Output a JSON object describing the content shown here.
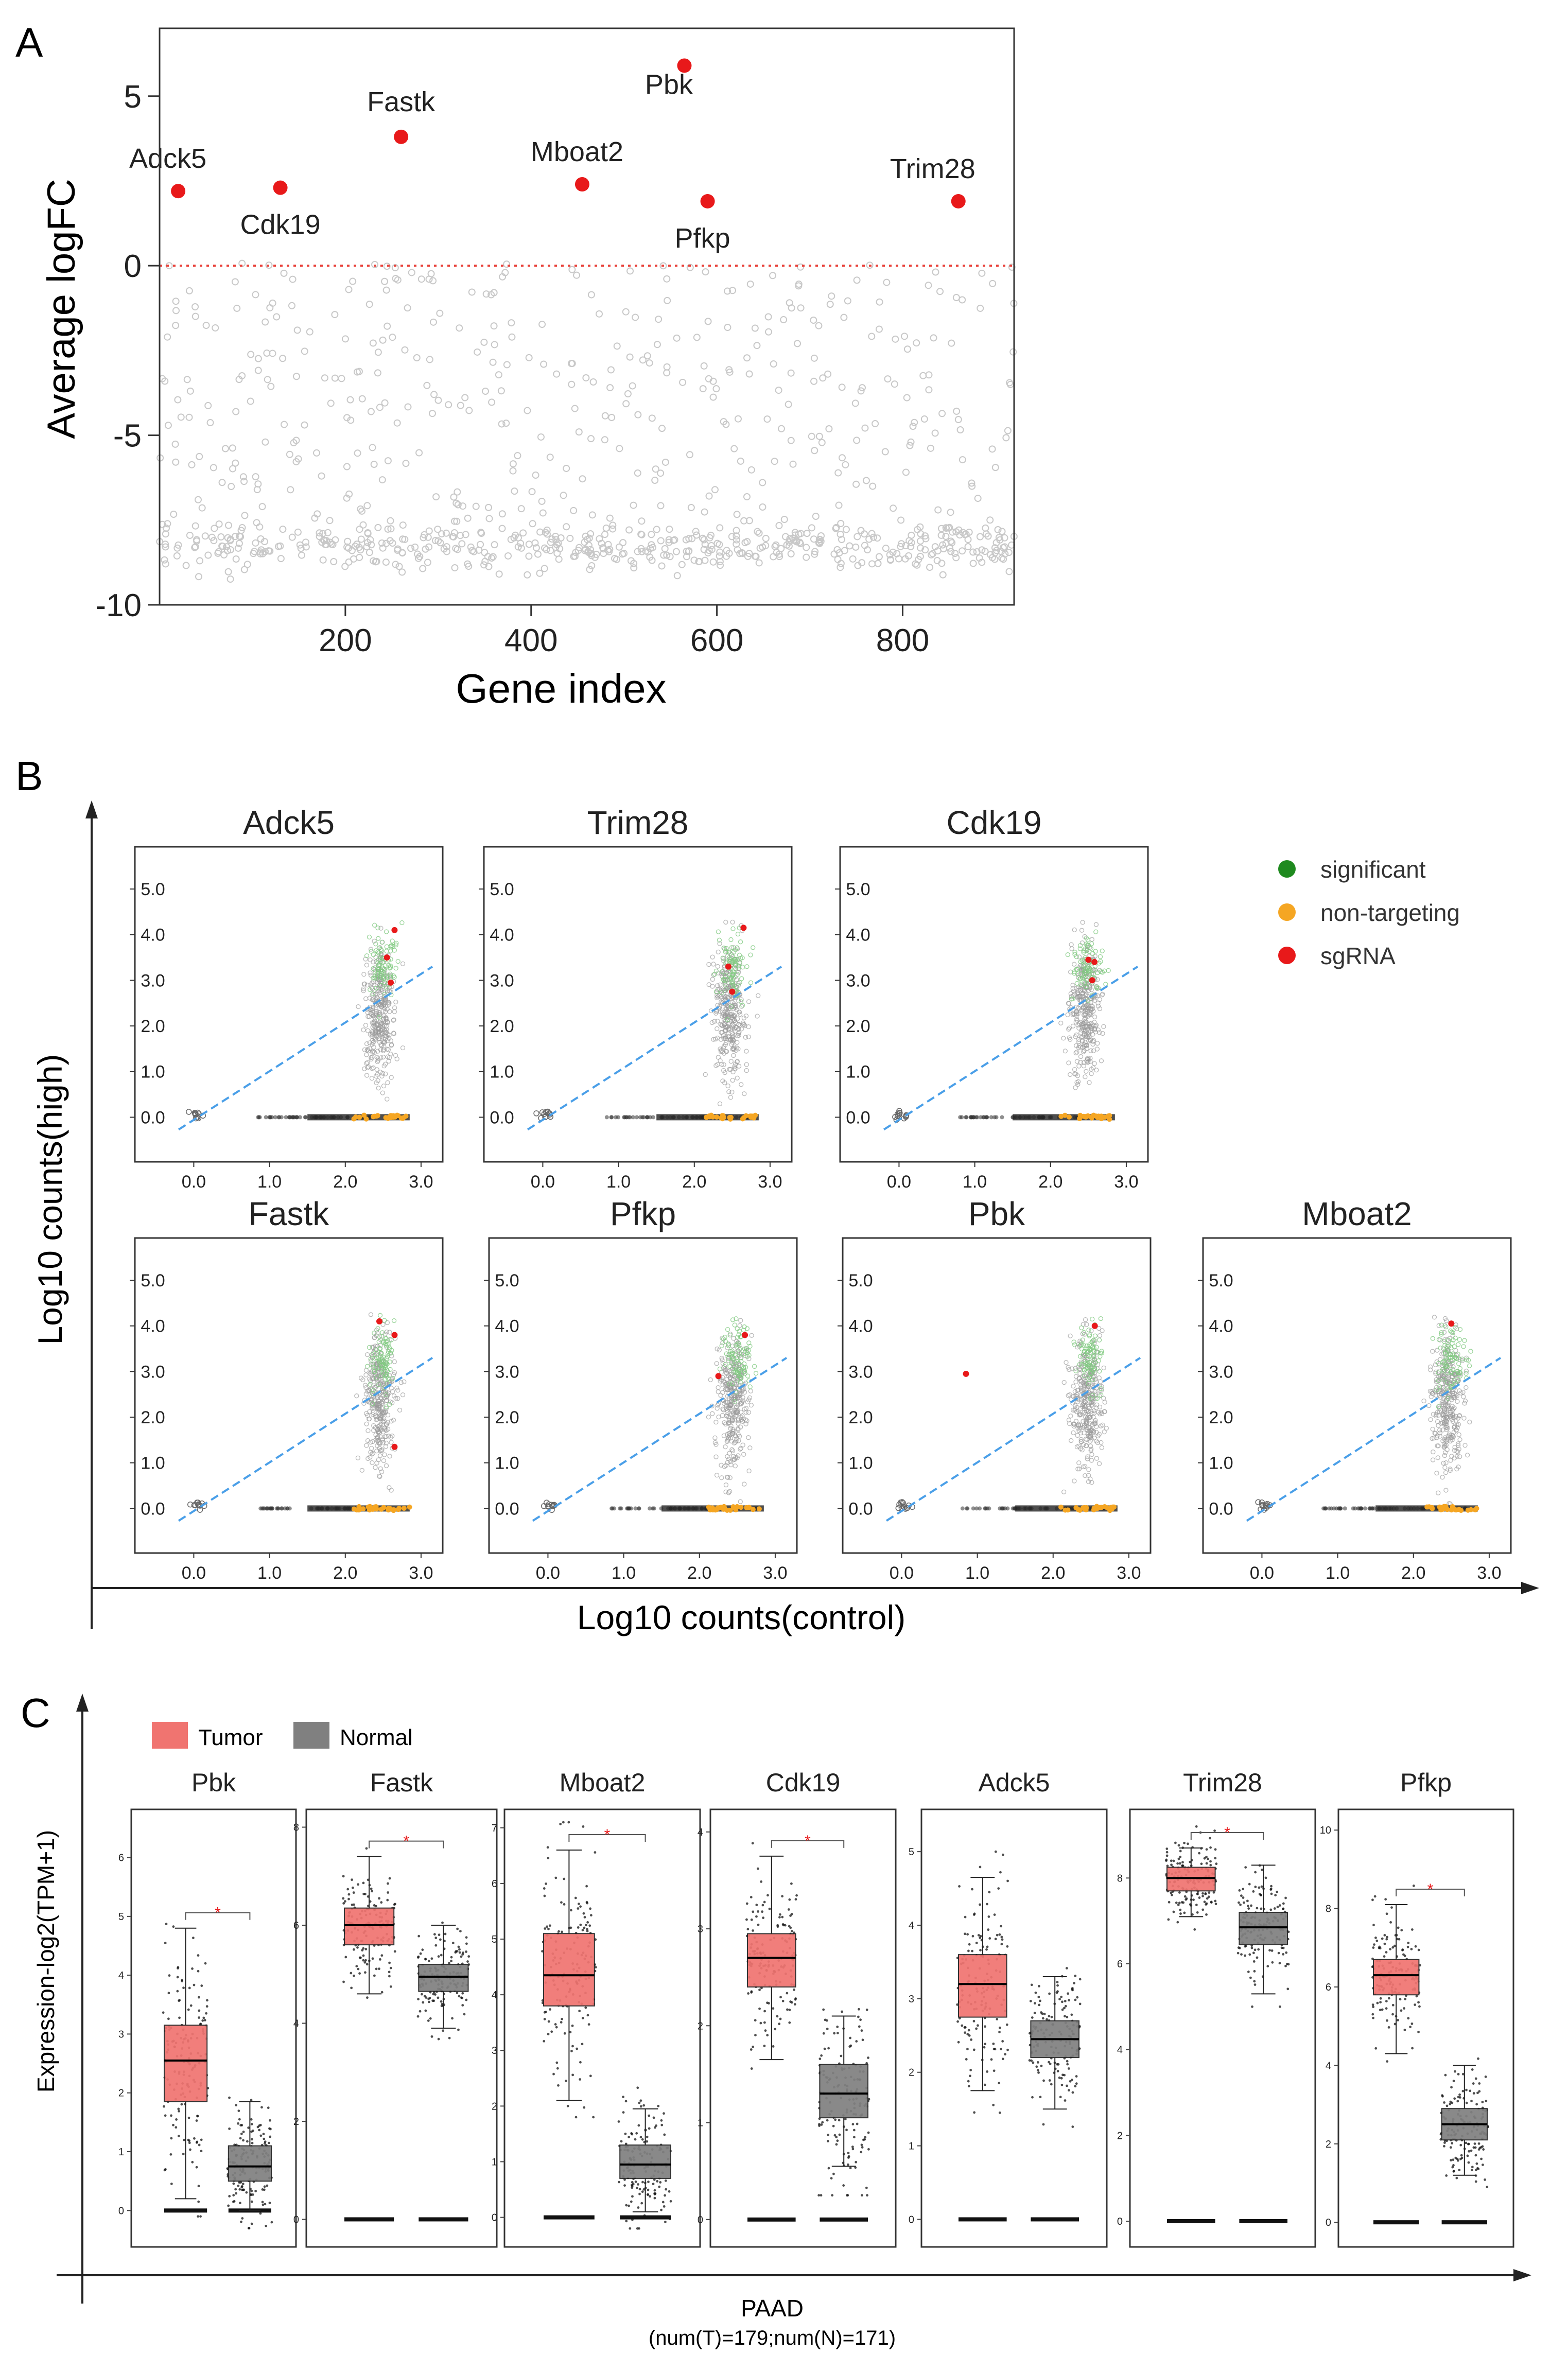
{
  "panel_a": {
    "label": "A",
    "chart_data": {
      "type": "scatter",
      "title": "",
      "xlabel": "Gene index",
      "ylabel": "Average logFC",
      "xlim": [
        0,
        920
      ],
      "ylim": [
        -10,
        7
      ],
      "xticks": [
        200,
        400,
        600,
        800
      ],
      "yticks": [
        5,
        0,
        -5,
        -10
      ],
      "reference_line": {
        "y": 0,
        "style": "dotted",
        "color": "#e8413a"
      },
      "highlighted": [
        {
          "label": "Adck5",
          "x": 20,
          "y": 2.2
        },
        {
          "label": "Cdk19",
          "x": 130,
          "y": 2.3
        },
        {
          "label": "Fastk",
          "x": 260,
          "y": 3.8
        },
        {
          "label": "Mboat2",
          "x": 455,
          "y": 2.4
        },
        {
          "label": "Pbk",
          "x": 565,
          "y": 5.9
        },
        {
          "label": "Pfkp",
          "x": 590,
          "y": 1.9
        },
        {
          "label": "Trim28",
          "x": 860,
          "y": 1.9
        }
      ],
      "background_series": {
        "name": "genes",
        "color": "#c8c8c8",
        "n_points": 920,
        "note": "dense cloud, mostly between -9 and 0"
      }
    }
  },
  "panel_b": {
    "label": "B",
    "xlabel": "Log10 counts(control)",
    "ylabel": "Log10 counts(high)",
    "legend": [
      {
        "label": "significant",
        "color": "#1f8a1f"
      },
      {
        "label": "non-targeting",
        "color": "#f5a623"
      },
      {
        "label": "sgRNA",
        "color": "#e8191a"
      }
    ],
    "chart_data": [
      {
        "type": "scatter",
        "title": "Adck5",
        "xlim": [
          -0.2,
          3.15
        ],
        "ylim": [
          -0.3,
          5.7
        ],
        "xticks": [
          "0.0",
          "1.0",
          "2.0",
          "3.0"
        ],
        "yticks": [
          "0.0",
          "1.0",
          "2.0",
          "3.0",
          "4.0",
          "5.0"
        ],
        "fit_line": [
          [
            -0.2,
            -0.27
          ],
          [
            3.15,
            3.3
          ]
        ],
        "sgRNA": [
          [
            2.65,
            4.1
          ],
          [
            2.55,
            3.5
          ],
          [
            2.6,
            2.95
          ]
        ]
      },
      {
        "type": "scatter",
        "title": "Trim28",
        "xlim": [
          -0.2,
          3.15
        ],
        "ylim": [
          -0.3,
          5.7
        ],
        "xticks": [
          "0.0",
          "1.0",
          "2.0",
          "3.0"
        ],
        "yticks": [
          "0.0",
          "1.0",
          "2.0",
          "3.0",
          "4.0",
          "5.0"
        ],
        "fit_line": [
          [
            -0.2,
            -0.27
          ],
          [
            3.15,
            3.3
          ]
        ],
        "sgRNA": [
          [
            2.65,
            4.15
          ],
          [
            2.45,
            3.3
          ],
          [
            2.5,
            2.75
          ]
        ]
      },
      {
        "type": "scatter",
        "title": "Cdk19",
        "xlim": [
          -0.2,
          3.15
        ],
        "ylim": [
          -0.3,
          5.7
        ],
        "xticks": [
          "0.0",
          "1.0",
          "2.0",
          "3.0"
        ],
        "yticks": [
          "0.0",
          "1.0",
          "2.0",
          "3.0",
          "4.0",
          "5.0"
        ],
        "fit_line": [
          [
            -0.2,
            -0.27
          ],
          [
            3.15,
            3.3
          ]
        ],
        "sgRNA": [
          [
            2.5,
            3.45
          ],
          [
            2.58,
            3.4
          ],
          [
            2.55,
            3.0
          ]
        ]
      },
      {
        "type": "scatter",
        "title": "Fastk",
        "xlim": [
          -0.2,
          3.15
        ],
        "ylim": [
          -0.3,
          5.7
        ],
        "xticks": [
          "0.0",
          "1.0",
          "2.0",
          "3.0"
        ],
        "yticks": [
          "0.0",
          "1.0",
          "2.0",
          "3.0",
          "4.0",
          "5.0"
        ],
        "fit_line": [
          [
            -0.2,
            -0.27
          ],
          [
            3.15,
            3.3
          ]
        ],
        "sgRNA": [
          [
            2.45,
            4.1
          ],
          [
            2.65,
            3.8
          ],
          [
            2.65,
            1.35
          ]
        ]
      },
      {
        "type": "scatter",
        "title": "Pfkp",
        "xlim": [
          -0.2,
          3.15
        ],
        "ylim": [
          -0.3,
          5.7
        ],
        "xticks": [
          "0.0",
          "1.0",
          "2.0",
          "3.0"
        ],
        "yticks": [
          "0.0",
          "1.0",
          "2.0",
          "3.0",
          "4.0",
          "5.0"
        ],
        "fit_line": [
          [
            -0.2,
            -0.27
          ],
          [
            3.15,
            3.3
          ]
        ],
        "sgRNA": [
          [
            2.6,
            3.8
          ],
          [
            2.25,
            2.9
          ]
        ]
      },
      {
        "type": "scatter",
        "title": "Pbk",
        "xlim": [
          -0.2,
          3.15
        ],
        "ylim": [
          -0.3,
          5.7
        ],
        "xticks": [
          "0.0",
          "1.0",
          "2.0",
          "3.0"
        ],
        "yticks": [
          "0.0",
          "1.0",
          "2.0",
          "3.0",
          "4.0",
          "5.0"
        ],
        "fit_line": [
          [
            -0.2,
            -0.27
          ],
          [
            3.15,
            3.3
          ]
        ],
        "sgRNA": [
          [
            2.55,
            4.0
          ],
          [
            0.85,
            2.95
          ]
        ]
      },
      {
        "type": "scatter",
        "title": "Mboat2",
        "xlim": [
          -0.2,
          3.15
        ],
        "ylim": [
          -0.3,
          5.7
        ],
        "xticks": [
          "0.0",
          "1.0",
          "2.0",
          "3.0"
        ],
        "yticks": [
          "0.0",
          "1.0",
          "2.0",
          "3.0",
          "4.0",
          "5.0"
        ],
        "fit_line": [
          [
            -0.2,
            -0.27
          ],
          [
            3.15,
            3.3
          ]
        ],
        "sgRNA": [
          [
            2.5,
            4.05
          ]
        ]
      }
    ]
  },
  "panel_c": {
    "label": "C",
    "ylabel": "Expression-log2(TPM+1)",
    "xlabel": "PAAD",
    "subtitle": "(num(T)=179;num(N)=171)",
    "legend": [
      {
        "label": "Tumor",
        "color": "#f07470"
      },
      {
        "label": "Normal",
        "color": "#808080"
      }
    ],
    "significance_mark": "*",
    "chart_data": [
      {
        "type": "box",
        "title": "Pbk",
        "ylim": [
          -0.4,
          6.6
        ],
        "yticks": [
          0,
          1,
          2,
          3,
          4,
          5,
          6
        ],
        "sig": true,
        "series": [
          {
            "name": "Tumor",
            "q1": 1.85,
            "median": 2.55,
            "q3": 3.15,
            "whisker_low": 0.2,
            "whisker_high": 4.8
          },
          {
            "name": "Normal",
            "q1": 0.5,
            "median": 0.75,
            "q3": 1.1,
            "whisker_low": 0.0,
            "whisker_high": 1.85
          }
        ]
      },
      {
        "type": "box",
        "title": "Fastk",
        "ylim": [
          -0.3,
          8.1
        ],
        "yticks": [
          0,
          2,
          4,
          6,
          8
        ],
        "sig": true,
        "series": [
          {
            "name": "Tumor",
            "q1": 5.6,
            "median": 6.0,
            "q3": 6.35,
            "whisker_low": 4.6,
            "whisker_high": 7.4
          },
          {
            "name": "Normal",
            "q1": 4.65,
            "median": 4.95,
            "q3": 5.2,
            "whisker_low": 3.9,
            "whisker_high": 6.0
          }
        ]
      },
      {
        "type": "box",
        "title": "Mboat2",
        "ylim": [
          -0.3,
          7.1
        ],
        "yticks": [
          0,
          1,
          2,
          3,
          4,
          5,
          6,
          7
        ],
        "sig": true,
        "series": [
          {
            "name": "Tumor",
            "q1": 3.8,
            "median": 4.35,
            "q3": 5.1,
            "whisker_low": 2.1,
            "whisker_high": 6.6
          },
          {
            "name": "Normal",
            "q1": 0.7,
            "median": 0.95,
            "q3": 1.3,
            "whisker_low": 0.1,
            "whisker_high": 1.95
          }
        ]
      },
      {
        "type": "box",
        "title": "Cdk19",
        "ylim": [
          -0.15,
          4.1
        ],
        "yticks": [
          0,
          1,
          2,
          3,
          4
        ],
        "sig": true,
        "series": [
          {
            "name": "Tumor",
            "q1": 2.4,
            "median": 2.7,
            "q3": 2.95,
            "whisker_low": 1.65,
            "whisker_high": 3.75
          },
          {
            "name": "Normal",
            "q1": 1.05,
            "median": 1.3,
            "q3": 1.6,
            "whisker_low": 0.55,
            "whisker_high": 2.1
          }
        ]
      },
      {
        "type": "box",
        "title": "Adck5",
        "ylim": [
          -0.2,
          5.4
        ],
        "yticks": [
          0,
          1,
          2,
          3,
          4,
          5
        ],
        "sig": false,
        "series": [
          {
            "name": "Tumor",
            "q1": 2.75,
            "median": 3.2,
            "q3": 3.6,
            "whisker_low": 1.75,
            "whisker_high": 4.65
          },
          {
            "name": "Normal",
            "q1": 2.2,
            "median": 2.45,
            "q3": 2.7,
            "whisker_low": 1.5,
            "whisker_high": 3.3
          }
        ]
      },
      {
        "type": "box",
        "title": "Trim28",
        "ylim": [
          -0.3,
          9.3
        ],
        "yticks": [
          0,
          2,
          4,
          6,
          8
        ],
        "sig": true,
        "series": [
          {
            "name": "Tumor",
            "q1": 7.7,
            "median": 8.0,
            "q3": 8.25,
            "whisker_low": 7.1,
            "whisker_high": 8.7
          },
          {
            "name": "Normal",
            "q1": 6.45,
            "median": 6.85,
            "q3": 7.2,
            "whisker_low": 5.3,
            "whisker_high": 8.3
          }
        ]
      },
      {
        "type": "box",
        "title": "Pfkp",
        "ylim": [
          -0.3,
          10.2
        ],
        "yticks": [
          0,
          2,
          4,
          6,
          8,
          10
        ],
        "sig": true,
        "series": [
          {
            "name": "Tumor",
            "q1": 5.8,
            "median": 6.3,
            "q3": 6.7,
            "whisker_low": 4.3,
            "whisker_high": 8.1
          },
          {
            "name": "Normal",
            "q1": 2.1,
            "median": 2.5,
            "q3": 2.9,
            "whisker_low": 1.2,
            "whisker_high": 4.0
          }
        ]
      }
    ]
  }
}
